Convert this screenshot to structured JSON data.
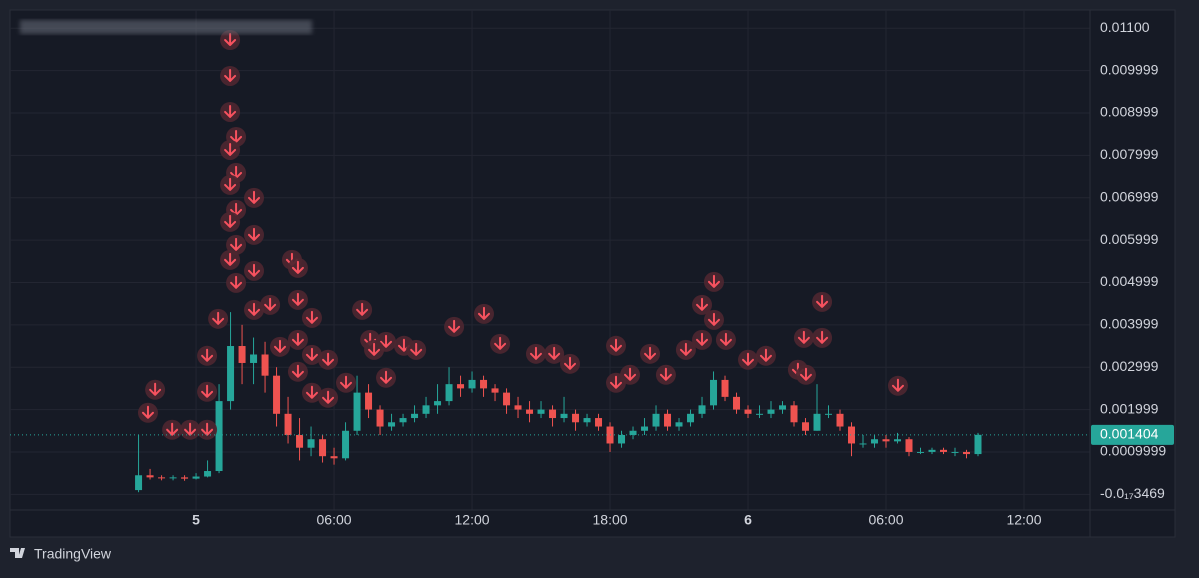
{
  "chart_data": {
    "type": "candlestick",
    "x": [
      -2.5,
      -2,
      -1.5,
      -1,
      -0.5,
      0,
      0.5,
      1,
      1.5,
      2,
      2.5,
      3,
      3.5,
      4,
      4.5,
      5,
      5.5,
      6,
      6.5,
      7,
      7.5,
      8,
      8.5,
      9,
      9.5,
      10,
      10.5,
      11,
      11.5,
      12,
      12.5,
      13,
      13.5,
      14,
      14.5,
      15,
      15.5,
      16,
      16.5,
      17,
      17.5,
      18,
      18.5,
      19,
      19.5,
      20,
      20.5,
      21,
      21.5,
      22,
      22.5,
      23,
      23.5,
      24,
      24.5,
      25,
      25.5,
      26,
      26.5,
      27,
      27.5,
      28,
      28.5,
      29,
      29.5,
      30,
      30.5,
      31,
      31.5,
      32,
      32.5,
      33,
      33.5,
      34
    ],
    "open": [
      0.0001,
      0.00045,
      0.0004,
      0.00038,
      0.0004,
      0.00037,
      0.00042,
      0.00055,
      0.0022,
      0.0035,
      0.0031,
      0.0033,
      0.0028,
      0.0019,
      0.0014,
      0.0011,
      0.0013,
      0.0009,
      0.00085,
      0.0015,
      0.0024,
      0.002,
      0.0016,
      0.0017,
      0.0018,
      0.0019,
      0.0021,
      0.0022,
      0.0026,
      0.0025,
      0.0027,
      0.0025,
      0.0024,
      0.0021,
      0.002,
      0.0019,
      0.002,
      0.0018,
      0.0019,
      0.0017,
      0.0018,
      0.0016,
      0.0012,
      0.0014,
      0.0015,
      0.0016,
      0.0019,
      0.0016,
      0.0017,
      0.0019,
      0.0021,
      0.0027,
      0.0023,
      0.002,
      0.0019,
      0.0019,
      0.002,
      0.0021,
      0.0017,
      0.0015,
      0.0019,
      0.0019,
      0.0016,
      0.0012,
      0.0012,
      0.0013,
      0.00125,
      0.0013,
      0.001,
      0.001,
      0.00105,
      0.001,
      0.001,
      0.00095
    ],
    "high": [
      0.0014,
      0.0006,
      0.00045,
      0.00045,
      0.00045,
      0.0005,
      0.0008,
      0.0026,
      0.0043,
      0.004,
      0.0037,
      0.0036,
      0.003,
      0.0023,
      0.0018,
      0.0016,
      0.0014,
      0.0011,
      0.0017,
      0.0028,
      0.0026,
      0.0021,
      0.0019,
      0.0019,
      0.0021,
      0.0023,
      0.0026,
      0.003,
      0.0028,
      0.0029,
      0.0028,
      0.0026,
      0.0025,
      0.0023,
      0.0022,
      0.0022,
      0.0021,
      0.0023,
      0.002,
      0.0019,
      0.0019,
      0.0017,
      0.0015,
      0.0016,
      0.0018,
      0.0021,
      0.002,
      0.0018,
      0.002,
      0.0023,
      0.0029,
      0.0028,
      0.0024,
      0.0021,
      0.0021,
      0.0022,
      0.0022,
      0.0022,
      0.0018,
      0.0026,
      0.0021,
      0.002,
      0.0017,
      0.0014,
      0.0014,
      0.0014,
      0.00145,
      0.00135,
      0.0011,
      0.0011,
      0.0011,
      0.0011,
      0.00105,
      0.00145
    ],
    "low": [
      5e-05,
      0.00035,
      0.00033,
      0.00033,
      0.00032,
      0.00035,
      0.0004,
      0.0005,
      0.002,
      0.0026,
      0.0026,
      0.0024,
      0.0016,
      0.0012,
      0.0008,
      0.0009,
      0.00075,
      0.0007,
      0.0008,
      0.0014,
      0.0018,
      0.0014,
      0.0015,
      0.0016,
      0.0017,
      0.0018,
      0.0019,
      0.0021,
      0.0023,
      0.0024,
      0.0023,
      0.0022,
      0.0019,
      0.0018,
      0.0017,
      0.0018,
      0.0016,
      0.0017,
      0.0015,
      0.0016,
      0.0015,
      0.001,
      0.0011,
      0.0013,
      0.0014,
      0.0015,
      0.0015,
      0.0015,
      0.0016,
      0.0018,
      0.002,
      0.0022,
      0.0019,
      0.0018,
      0.0018,
      0.0018,
      0.0019,
      0.0016,
      0.0014,
      0.0015,
      0.0018,
      0.0015,
      0.0009,
      0.0011,
      0.0011,
      0.0011,
      0.0012,
      0.0009,
      0.00095,
      0.00095,
      0.00095,
      0.0009,
      0.00085,
      0.0009
    ],
    "close": [
      0.00045,
      0.0004,
      0.00038,
      0.0004,
      0.00037,
      0.00042,
      0.00055,
      0.0022,
      0.0035,
      0.0031,
      0.0033,
      0.0028,
      0.0019,
      0.0014,
      0.0011,
      0.0013,
      0.0009,
      0.00085,
      0.0015,
      0.0024,
      0.002,
      0.0016,
      0.0017,
      0.0018,
      0.0019,
      0.0021,
      0.0022,
      0.0026,
      0.0025,
      0.0027,
      0.0025,
      0.0024,
      0.0021,
      0.002,
      0.0019,
      0.002,
      0.0018,
      0.0019,
      0.0017,
      0.0018,
      0.0016,
      0.0012,
      0.0014,
      0.0015,
      0.0016,
      0.0019,
      0.0016,
      0.0017,
      0.0019,
      0.0021,
      0.0027,
      0.0023,
      0.002,
      0.0019,
      0.0019,
      0.002,
      0.0021,
      0.0017,
      0.0015,
      0.0019,
      0.0019,
      0.0016,
      0.0012,
      0.0012,
      0.0013,
      0.00125,
      0.0013,
      0.001,
      0.001,
      0.00105,
      0.001,
      0.001,
      0.00095,
      0.001404
    ],
    "up_color": "#26a69a",
    "down_color": "#ef5350",
    "signals": {
      "color": "#f7525f",
      "x": [
        -1.78,
        -2.09,
        -1.04,
        -0.26,
        0.48,
        0.48,
        0.48,
        0.96,
        1.48,
        1.48,
        1.48,
        1.74,
        1.48,
        1.74,
        1.48,
        1.74,
        2.52,
        1.48,
        1.74,
        2.52,
        1.48,
        2.52,
        1.74,
        3.22,
        2.52,
        4.17,
        4.43,
        4.43,
        5.04,
        4.43,
        3.65,
        5.04,
        5.74,
        4.43,
        5.04,
        5.74,
        6.52,
        7.22,
        7.57,
        8.26,
        7.74,
        8.26,
        9.04,
        9.57,
        11.22,
        12.52,
        13.22,
        14.78,
        15.57,
        16.26,
        18.26,
        18.26,
        18.87,
        19.74,
        20.43,
        21.3,
        22,
        22,
        22.52,
        22.52,
        23.04,
        24,
        24.78,
        26.17,
        26.52,
        26.43,
        27.22,
        27.22,
        30.52
      ],
      "values": [
        0.002467,
        0.001925,
        0.001524,
        0.001524,
        0.001524,
        0.00242,
        0.003269,
        0.004142,
        0.010722,
        0.009873,
        0.009024,
        0.008434,
        0.008127,
        0.007585,
        0.007302,
        0.006712,
        0.006995,
        0.006429,
        0.005887,
        0.006123,
        0.005533,
        0.005274,
        0.004991,
        0.004472,
        0.004354,
        0.005533,
        0.005344,
        0.00459,
        0.004165,
        0.003646,
        0.003481,
        0.003292,
        0.003175,
        0.002892,
        0.002396,
        0.002278,
        0.002632,
        0.004354,
        0.003646,
        0.003599,
        0.00341,
        0.00275,
        0.003505,
        0.00341,
        0.003953,
        0.004259,
        0.003552,
        0.003316,
        0.003316,
        0.00308,
        0.003505,
        0.002632,
        0.002821,
        0.003316,
        0.002821,
        0.00341,
        0.003646,
        0.004472,
        0.005014,
        0.004118,
        0.003646,
        0.003175,
        0.003269,
        0.002939,
        0.002821,
        0.003693,
        0.003693,
        0.004542,
        0.002561
      ]
    },
    "xlim": [
      -8.09,
      38.87
    ],
    "xticks": [
      {
        "value": 0,
        "label": "5"
      },
      {
        "value": 6,
        "label": "06:00"
      },
      {
        "value": 12,
        "label": "12:00"
      },
      {
        "value": 18,
        "label": "18:00"
      },
      {
        "value": 24,
        "label": "6"
      },
      {
        "value": 30,
        "label": "06:00"
      },
      {
        "value": 36,
        "label": "12:00"
      }
    ],
    "ylim": [
      -0.00037,
      0.01143
    ],
    "yticks": [
      {
        "value": 0.011,
        "label": "0.01100"
      },
      0.009999,
      0.008999,
      0.007999,
      0.006999,
      0.005999,
      0.004999,
      0.003999,
      0.002999,
      0.001999,
      0.0009999,
      {
        "value": -3.469e-18,
        "label": "-0.0₁₇3469"
      }
    ],
    "grid": true
  },
  "branding": "TradingView"
}
